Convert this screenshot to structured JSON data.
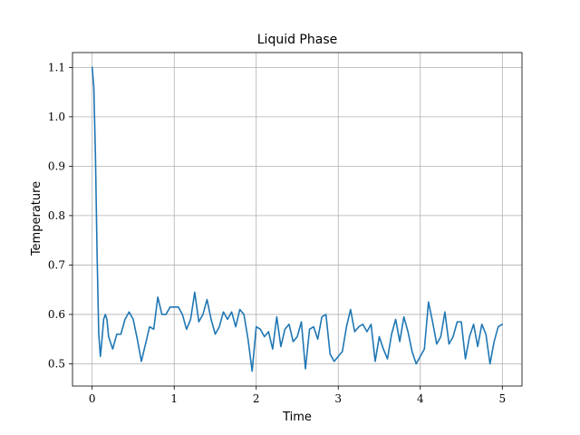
{
  "chart_data": {
    "type": "line",
    "title": "Liquid Phase",
    "xlabel": "Time",
    "ylabel": "Temperature",
    "xlim": [
      -0.24,
      5.24
    ],
    "ylim": [
      0.455,
      1.13
    ],
    "grid": true,
    "xticks": [
      0,
      1,
      2,
      3,
      4,
      5
    ],
    "xtick_labels": [
      "0",
      "1",
      "2",
      "3",
      "4",
      "5"
    ],
    "yticks": [
      0.5,
      0.6,
      0.7,
      0.8,
      0.9,
      1.0,
      1.1
    ],
    "ytick_labels": [
      "0.5",
      "0.6",
      "0.7",
      "0.8",
      "0.9",
      "1.0",
      "1.1"
    ],
    "series": [
      {
        "color": "#1f77b4",
        "x": [
          0,
          0.02,
          0.04,
          0.06,
          0.08,
          0.1,
          0.12,
          0.14,
          0.16,
          0.18,
          0.2,
          0.25,
          0.3,
          0.35,
          0.4,
          0.45,
          0.5,
          0.55,
          0.6,
          0.65,
          0.7,
          0.75,
          0.8,
          0.85,
          0.9,
          0.95,
          1.0,
          1.05,
          1.1,
          1.15,
          1.2,
          1.25,
          1.3,
          1.35,
          1.4,
          1.45,
          1.5,
          1.55,
          1.6,
          1.65,
          1.7,
          1.75,
          1.8,
          1.85,
          1.9,
          1.95,
          2.0,
          2.05,
          2.1,
          2.15,
          2.2,
          2.25,
          2.3,
          2.35,
          2.4,
          2.45,
          2.5,
          2.55,
          2.6,
          2.65,
          2.7,
          2.75,
          2.8,
          2.85,
          2.9,
          2.95,
          3.0,
          3.05,
          3.1,
          3.15,
          3.2,
          3.25,
          3.3,
          3.35,
          3.4,
          3.45,
          3.5,
          3.55,
          3.6,
          3.65,
          3.7,
          3.75,
          3.8,
          3.85,
          3.9,
          3.95,
          4.0,
          4.05,
          4.1,
          4.15,
          4.2,
          4.25,
          4.3,
          4.35,
          4.4,
          4.45,
          4.5,
          4.55,
          4.6,
          4.65,
          4.7,
          4.75,
          4.8,
          4.85,
          4.9,
          4.95,
          5.0
        ],
        "y": [
          1.1,
          1.06,
          0.92,
          0.72,
          0.56,
          0.515,
          0.55,
          0.59,
          0.6,
          0.59,
          0.555,
          0.53,
          0.56,
          0.56,
          0.59,
          0.605,
          0.59,
          0.55,
          0.505,
          0.54,
          0.575,
          0.57,
          0.635,
          0.6,
          0.6,
          0.615,
          0.615,
          0.615,
          0.6,
          0.57,
          0.59,
          0.645,
          0.585,
          0.6,
          0.63,
          0.59,
          0.56,
          0.575,
          0.605,
          0.59,
          0.605,
          0.575,
          0.61,
          0.6,
          0.55,
          0.485,
          0.575,
          0.57,
          0.555,
          0.565,
          0.53,
          0.595,
          0.535,
          0.57,
          0.58,
          0.545,
          0.555,
          0.585,
          0.49,
          0.57,
          0.575,
          0.55,
          0.595,
          0.6,
          0.52,
          0.505,
          0.515,
          0.525,
          0.575,
          0.61,
          0.565,
          0.575,
          0.58,
          0.565,
          0.58,
          0.505,
          0.555,
          0.53,
          0.51,
          0.56,
          0.59,
          0.545,
          0.595,
          0.565,
          0.525,
          0.5,
          0.515,
          0.53,
          0.625,
          0.585,
          0.54,
          0.555,
          0.605,
          0.54,
          0.555,
          0.585,
          0.585,
          0.51,
          0.555,
          0.58,
          0.535,
          0.58,
          0.56,
          0.5,
          0.545,
          0.575,
          0.58
        ]
      }
    ]
  }
}
